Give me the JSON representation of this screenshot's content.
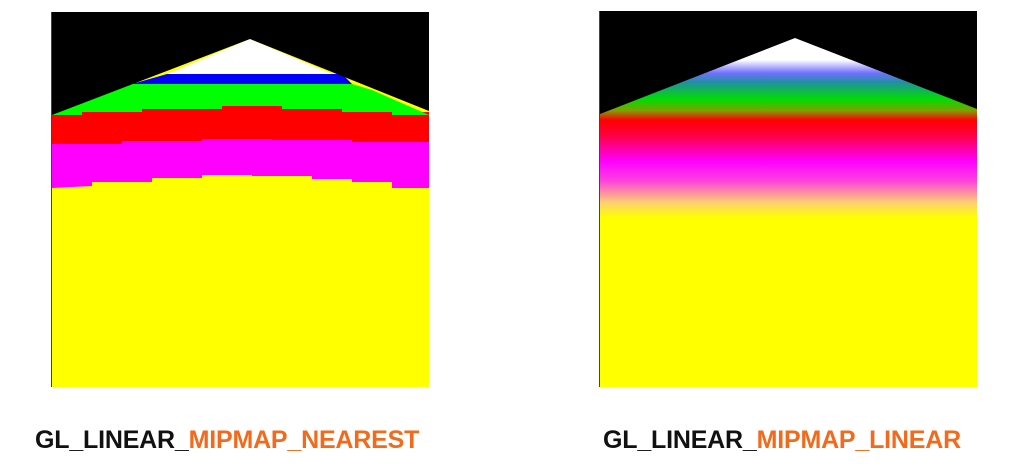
{
  "colors": {
    "background": "#ffffff",
    "caption_prefix": "#111111",
    "caption_accent": "#f26a1b",
    "band_black": "#000000",
    "band_white": "#ffffff",
    "band_blue": "#0000ff",
    "band_green": "#00ff00",
    "band_red": "#ff0000",
    "band_magenta": "#ff00ff",
    "band_yellow": "#ffff00"
  },
  "panels": [
    {
      "filter": "nearest",
      "caption_prefix": "GL_LINEAR_",
      "caption_suffix": "MIPMAP_NEAREST"
    },
    {
      "filter": "linear",
      "caption_prefix": "GL_LINEAR_",
      "caption_suffix": "MIPMAP_LINEAR"
    }
  ]
}
